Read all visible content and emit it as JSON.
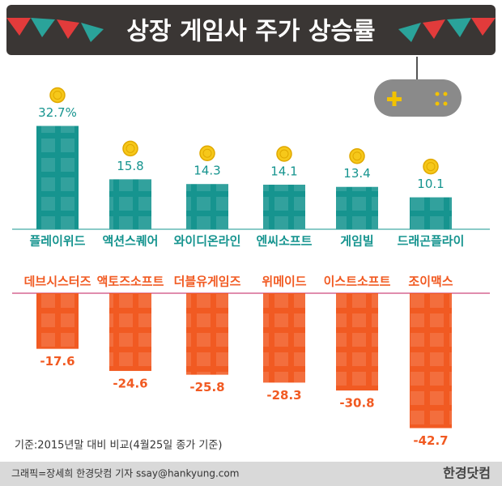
{
  "title": "상장 게임사 주가 상승률",
  "chart_data": [
    {
      "type": "bar",
      "categories": [
        "플레이위드",
        "액션스퀘어",
        "와이디온라인",
        "엔씨소프트",
        "게임빌",
        "드래곤플라이"
      ],
      "values": [
        32.7,
        15.8,
        14.3,
        14.1,
        13.4,
        10.1
      ],
      "value_labels": [
        "32.7%",
        "15.8",
        "14.3",
        "14.1",
        "13.4",
        "10.1"
      ],
      "color": "#16948f"
    },
    {
      "type": "bar",
      "categories": [
        "데브시스터즈",
        "액토즈소프트",
        "더블유게임즈",
        "위메이드",
        "이스트소프트",
        "조이맥스"
      ],
      "values": [
        -17.6,
        -24.6,
        -25.8,
        -28.3,
        -30.8,
        -42.7
      ],
      "color": "#f15a22"
    }
  ],
  "note": "기준:2015년말 대비 비교(4월25일 종가 기준)",
  "credit": "그래픽=장세희 한경닷컴 기자 ssay@hankyung.com",
  "logo": "한경닷컴"
}
